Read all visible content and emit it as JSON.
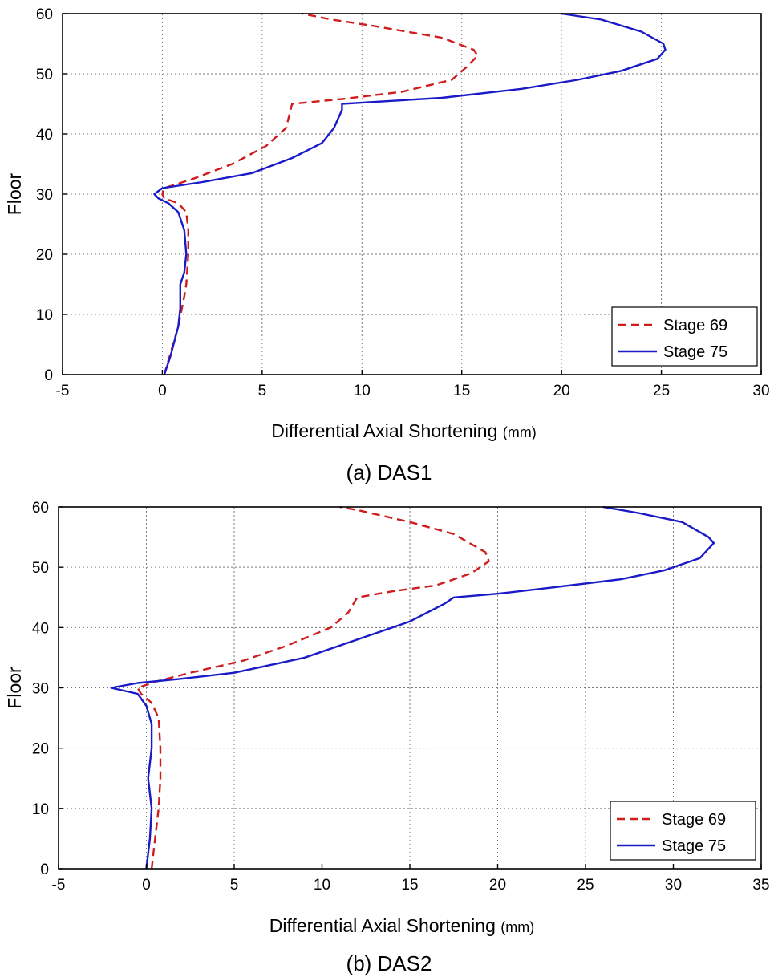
{
  "chart_data": [
    {
      "type": "line",
      "caption": "(a) DAS1",
      "xlabel": "Differential Axial Shortening",
      "xlabel_unit": "(mm)",
      "ylabel": "Floor",
      "xlim": [
        -5,
        30
      ],
      "ylim": [
        0,
        60
      ],
      "xticks": [
        -5,
        0,
        5,
        10,
        15,
        20,
        25,
        30
      ],
      "yticks": [
        0,
        10,
        20,
        30,
        40,
        50,
        60
      ],
      "grid": true,
      "legend_position": "bottom-right",
      "series": [
        {
          "name": "Stage 69",
          "color": "#d01c1c",
          "style": "dashed",
          "points": [
            [
              0.1,
              0
            ],
            [
              0.8,
              8
            ],
            [
              1.1,
              13
            ],
            [
              1.2,
              15
            ],
            [
              1.3,
              20
            ],
            [
              1.3,
              24
            ],
            [
              1.2,
              27
            ],
            [
              0.8,
              28.5
            ],
            [
              0.1,
              29.3
            ],
            [
              0,
              30
            ],
            [
              0.1,
              31
            ],
            [
              1.5,
              32.5
            ],
            [
              3.5,
              35
            ],
            [
              5.2,
              38
            ],
            [
              6.2,
              41
            ],
            [
              6.5,
              45
            ],
            [
              9,
              45.8
            ],
            [
              12,
              47
            ],
            [
              14.5,
              49
            ],
            [
              15.2,
              51
            ],
            [
              15.8,
              53
            ],
            [
              15.6,
              54
            ],
            [
              14,
              56
            ],
            [
              10.5,
              58
            ],
            [
              8.5,
              59
            ],
            [
              7,
              60
            ]
          ]
        },
        {
          "name": "Stage 75",
          "color": "#1a1ac8",
          "style": "solid",
          "points": [
            [
              0.1,
              0
            ],
            [
              0.4,
              3
            ],
            [
              0.8,
              8
            ],
            [
              0.9,
              11
            ],
            [
              0.9,
              15
            ],
            [
              1.1,
              17
            ],
            [
              1.2,
              20
            ],
            [
              1.1,
              24
            ],
            [
              0.8,
              27
            ],
            [
              0.3,
              28.5
            ],
            [
              -0.2,
              29.3
            ],
            [
              -0.4,
              30
            ],
            [
              0,
              31
            ],
            [
              2,
              32
            ],
            [
              4.5,
              33.5
            ],
            [
              6.5,
              36
            ],
            [
              8,
              38.5
            ],
            [
              8.6,
              41
            ],
            [
              9,
              44
            ],
            [
              9,
              45
            ],
            [
              14,
              46
            ],
            [
              18,
              47.5
            ],
            [
              20.8,
              49
            ],
            [
              23,
              50.5
            ],
            [
              24.8,
              52.5
            ],
            [
              25.2,
              54
            ],
            [
              25.1,
              55
            ],
            [
              24,
              57
            ],
            [
              22,
              59
            ],
            [
              20,
              60
            ]
          ]
        }
      ]
    },
    {
      "type": "line",
      "caption": "(b) DAS2",
      "xlabel": "Differential Axial Shortening",
      "xlabel_unit": "(mm)",
      "ylabel": "Floor",
      "xlim": [
        -5,
        35
      ],
      "ylim": [
        0,
        60
      ],
      "xticks": [
        -5,
        0,
        5,
        10,
        15,
        20,
        25,
        30,
        35
      ],
      "yticks": [
        0,
        10,
        20,
        30,
        40,
        50,
        60
      ],
      "grid": true,
      "legend_position": "bottom-right",
      "series": [
        {
          "name": "Stage 69",
          "color": "#d01c1c",
          "style": "dashed",
          "points": [
            [
              0.3,
              0
            ],
            [
              0.5,
              5
            ],
            [
              0.7,
              10
            ],
            [
              0.8,
              15
            ],
            [
              0.8,
              20
            ],
            [
              0.7,
              25
            ],
            [
              0.3,
              27.5
            ],
            [
              -0.3,
              29
            ],
            [
              -0.5,
              30
            ],
            [
              0.5,
              31
            ],
            [
              2.5,
              32.5
            ],
            [
              5.5,
              34.5
            ],
            [
              8,
              37
            ],
            [
              10.5,
              40
            ],
            [
              11.5,
              42.5
            ],
            [
              12,
              45
            ],
            [
              14,
              46
            ],
            [
              16.5,
              47
            ],
            [
              18.5,
              49
            ],
            [
              19.5,
              51
            ],
            [
              19.3,
              52.5
            ],
            [
              17.5,
              55.5
            ],
            [
              15,
              57.5
            ],
            [
              12,
              59.5
            ],
            [
              11,
              60
            ]
          ]
        },
        {
          "name": "Stage 75",
          "color": "#1a1ac8",
          "style": "solid",
          "points": [
            [
              0,
              0
            ],
            [
              0.2,
              5
            ],
            [
              0.3,
              10
            ],
            [
              0.1,
              15
            ],
            [
              0.3,
              20
            ],
            [
              0.3,
              24
            ],
            [
              0,
              27
            ],
            [
              -0.5,
              29
            ],
            [
              -2,
              30
            ],
            [
              -0.5,
              30.8
            ],
            [
              2,
              31.5
            ],
            [
              5,
              32.5
            ],
            [
              9,
              35
            ],
            [
              12,
              38
            ],
            [
              15,
              41
            ],
            [
              17,
              44
            ],
            [
              17.5,
              45
            ],
            [
              20,
              45.6
            ],
            [
              23,
              46.6
            ],
            [
              27,
              48
            ],
            [
              29.5,
              49.5
            ],
            [
              31.5,
              51.5
            ],
            [
              32.3,
              54
            ],
            [
              32,
              55
            ],
            [
              30.5,
              57.5
            ],
            [
              28,
              59
            ],
            [
              26,
              60
            ]
          ]
        }
      ]
    }
  ]
}
